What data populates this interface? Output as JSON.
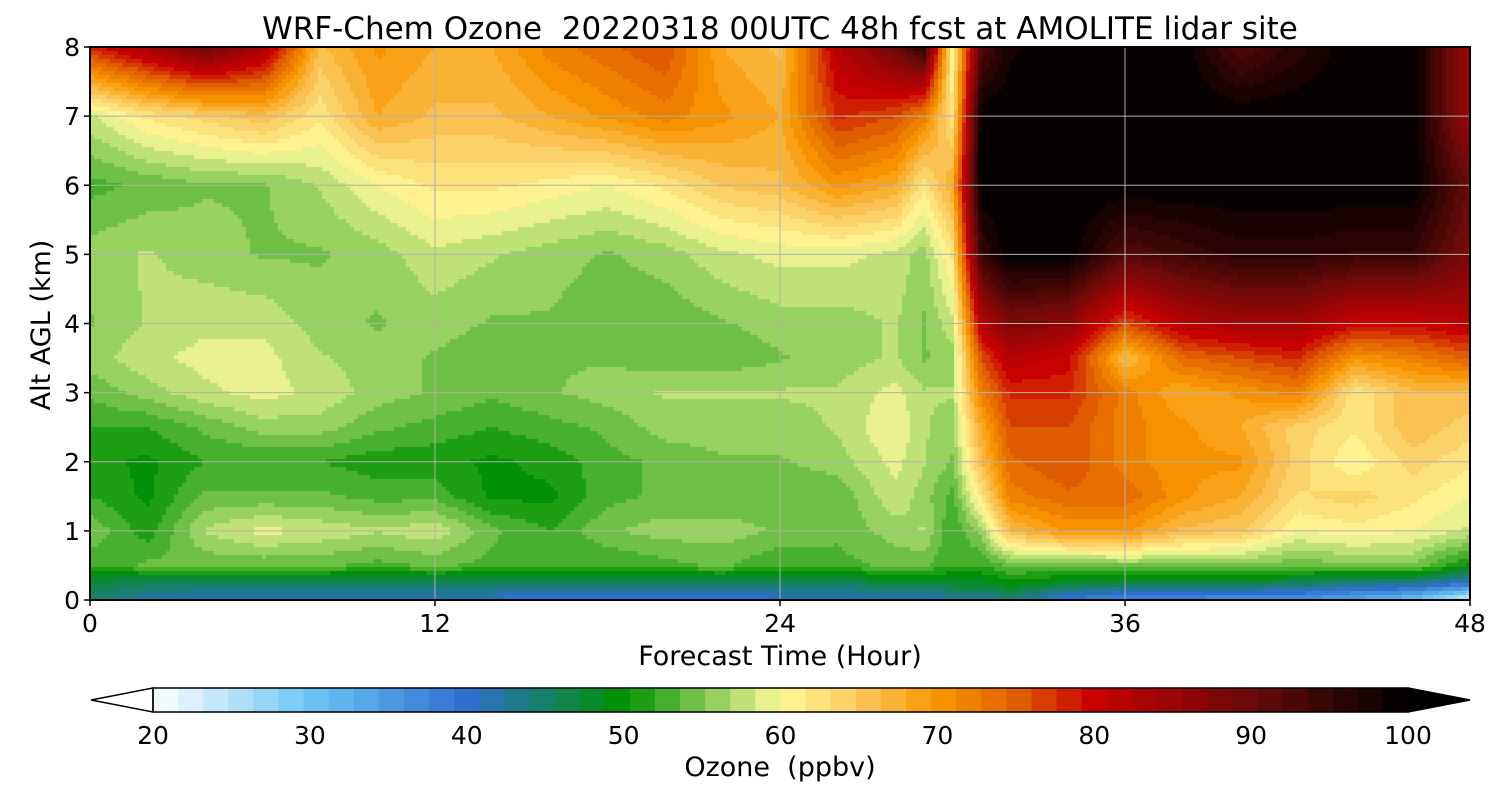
{
  "chart_data": {
    "type": "heatmap",
    "subtype": "filled-contour",
    "title": "WRF-Chem Ozone  20220318 00UTC 48h fcst at AMOLITE lidar site",
    "xlabel": "Forecast Time (Hour)",
    "ylabel": "Alt AGL (km)",
    "xlim": [
      0,
      48
    ],
    "ylim": [
      0,
      8
    ],
    "xticks": [
      0,
      12,
      24,
      36,
      48
    ],
    "yticks": [
      0,
      1,
      2,
      3,
      4,
      5,
      6,
      7,
      8
    ],
    "grid": true,
    "x": [
      0,
      2,
      4,
      6,
      8,
      10,
      12,
      14,
      16,
      18,
      20,
      22,
      24,
      26,
      28,
      29,
      30,
      31,
      32,
      34,
      36,
      38,
      40,
      42,
      44,
      46,
      48
    ],
    "y": [
      0,
      0.25,
      0.5,
      1,
      1.5,
      2,
      2.5,
      3,
      3.5,
      4,
      5,
      6,
      7,
      8
    ],
    "z": [
      [
        45,
        42,
        40,
        40,
        40,
        40,
        40,
        40,
        38,
        38,
        38,
        38,
        40,
        40,
        40,
        40,
        42,
        42,
        44,
        38,
        36,
        36,
        35,
        35,
        33,
        30,
        22
      ],
      [
        47,
        46,
        46,
        46,
        46,
        46,
        46,
        46,
        45,
        45,
        46,
        46,
        46,
        46,
        47,
        47,
        48,
        48,
        50,
        48,
        47,
        47,
        47,
        46,
        44,
        44,
        40
      ],
      [
        52,
        54,
        54,
        54,
        54,
        53,
        54,
        53,
        52,
        52,
        53,
        54,
        52,
        53,
        54,
        54,
        52,
        52,
        54,
        54,
        55,
        55,
        55,
        54,
        55,
        55,
        50
      ],
      [
        55,
        51,
        57,
        59,
        58,
        57,
        58,
        54,
        52,
        55,
        56,
        56,
        55,
        54,
        56,
        57,
        52,
        56,
        66,
        70,
        70,
        66,
        65,
        60,
        61,
        60,
        58
      ],
      [
        52,
        50,
        54,
        54,
        54,
        53,
        53,
        50,
        50,
        53,
        54,
        54,
        54,
        54,
        58,
        56,
        53,
        62,
        72,
        74,
        74,
        70,
        68,
        63,
        64,
        62,
        60
      ],
      [
        51,
        50,
        52,
        52,
        52,
        51,
        51,
        50,
        51,
        53,
        54,
        55,
        55,
        56,
        59,
        57,
        55,
        66,
        74,
        76,
        72,
        70,
        70,
        64,
        60,
        64,
        62
      ],
      [
        52,
        52,
        54,
        56,
        56,
        54,
        53,
        52,
        53,
        54,
        56,
        56,
        56,
        57,
        60,
        57,
        56,
        68,
        76,
        76,
        72,
        70,
        68,
        64,
        62,
        66,
        64
      ],
      [
        54,
        56,
        58,
        59,
        58,
        56,
        55,
        54,
        55,
        56,
        57,
        57,
        57,
        57,
        59,
        57,
        57,
        72,
        78,
        78,
        72,
        68,
        70,
        72,
        62,
        66,
        66
      ],
      [
        56,
        58,
        59,
        59,
        57,
        56,
        55,
        54,
        55,
        55,
        54,
        54,
        55,
        56,
        57,
        55,
        56,
        76,
        82,
        80,
        66,
        74,
        76,
        78,
        70,
        72,
        75
      ],
      [
        55,
        57,
        58,
        58,
        56,
        55,
        56,
        55,
        55,
        54,
        54,
        55,
        56,
        56,
        57,
        55,
        58,
        82,
        88,
        86,
        76,
        82,
        84,
        84,
        80,
        80,
        82
      ],
      [
        56,
        57,
        56,
        55,
        55,
        56,
        58,
        57,
        56,
        55,
        56,
        58,
        59,
        59,
        58,
        56,
        62,
        95,
        100,
        100,
        92,
        94,
        96,
        96,
        95,
        95,
        88
      ],
      [
        53,
        54,
        55,
        55,
        57,
        60,
        62,
        62,
        61,
        60,
        62,
        65,
        66,
        70,
        68,
        62,
        68,
        100,
        100,
        100,
        100,
        100,
        100,
        100,
        100,
        100,
        90
      ],
      [
        58,
        62,
        64,
        66,
        62,
        68,
        66,
        66,
        68,
        70,
        72,
        70,
        68,
        78,
        76,
        72,
        62,
        100,
        100,
        100,
        100,
        100,
        100,
        100,
        100,
        100,
        84
      ],
      [
        78,
        84,
        90,
        84,
        66,
        70,
        68,
        68,
        72,
        74,
        76,
        68,
        66,
        82,
        90,
        96,
        60,
        92,
        98,
        100,
        100,
        100,
        92,
        96,
        100,
        100,
        84
      ]
    ],
    "colorbar": {
      "label": "Ozone  (ppbv)",
      "min": 20,
      "max": 100,
      "step": 1.6,
      "ticks": [
        20,
        30,
        40,
        50,
        60,
        70,
        80,
        90,
        100
      ],
      "extend": "both",
      "orientation": "horizontal",
      "stops": [
        {
          "v": 20,
          "c": "#ffffff"
        },
        {
          "v": 30,
          "c": "#6cc6f5"
        },
        {
          "v": 40,
          "c": "#2f6fd0"
        },
        {
          "v": 50,
          "c": "#009100"
        },
        {
          "v": 55,
          "c": "#7ec850"
        },
        {
          "v": 60,
          "c": "#fdf99a"
        },
        {
          "v": 65,
          "c": "#fbc85e"
        },
        {
          "v": 70,
          "c": "#f89600"
        },
        {
          "v": 75,
          "c": "#e06000"
        },
        {
          "v": 80,
          "c": "#c80000"
        },
        {
          "v": 90,
          "c": "#6a0a0a"
        },
        {
          "v": 100,
          "c": "#000000"
        }
      ]
    }
  }
}
